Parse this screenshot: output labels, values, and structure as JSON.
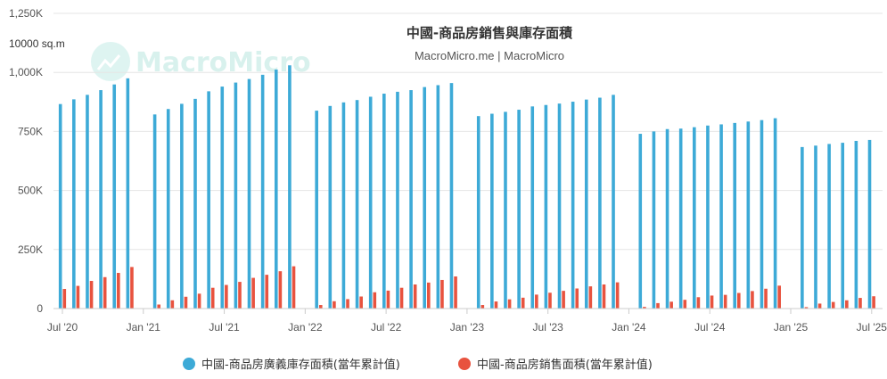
{
  "watermark": {
    "text": "MacroMicro"
  },
  "chart_data": {
    "type": "bar",
    "title": "中國-商品房銷售與庫存面積",
    "subtitle": "MacroMicro.me | MacroMicro",
    "ylabel": "10000 sq.m",
    "ylim": [
      0,
      1250
    ],
    "ytick_values": [
      0,
      250,
      500,
      750,
      1000,
      1250
    ],
    "ytick_labels": [
      "0",
      "250K",
      "500K",
      "750K",
      "1,000K",
      "1,250K"
    ],
    "xtick_labels": [
      "Jul '20",
      "Jan '21",
      "Jul '21",
      "Jan '22",
      "Jul '22",
      "Jan '23",
      "Jul '23",
      "Jan '24",
      "Jul '24",
      "Jan '25",
      "Jul '25"
    ],
    "grid": true,
    "legend_position": "bottom",
    "categories": [
      "2020-07",
      "2020-08",
      "2020-09",
      "2020-10",
      "2020-11",
      "2020-12",
      "2021-02",
      "2021-03",
      "2021-04",
      "2021-05",
      "2021-06",
      "2021-07",
      "2021-08",
      "2021-09",
      "2021-10",
      "2021-11",
      "2021-12",
      "2022-02",
      "2022-03",
      "2022-04",
      "2022-05",
      "2022-06",
      "2022-07",
      "2022-08",
      "2022-09",
      "2022-10",
      "2022-11",
      "2022-12",
      "2023-02",
      "2023-03",
      "2023-04",
      "2023-05",
      "2023-06",
      "2023-07",
      "2023-08",
      "2023-09",
      "2023-10",
      "2023-11",
      "2023-12",
      "2024-02",
      "2024-03",
      "2024-04",
      "2024-05",
      "2024-06",
      "2024-07",
      "2024-08",
      "2024-09",
      "2024-10",
      "2024-11",
      "2024-12",
      "2025-02",
      "2025-03",
      "2025-04",
      "2025-05",
      "2025-06",
      "2025-07"
    ],
    "series": [
      {
        "name": "中國-商品房廣義庫存面積(當年累計值)",
        "color": "#3daad7",
        "values": [
          866,
          886,
          905,
          925,
          949,
          975,
          822,
          845,
          867,
          888,
          920,
          940,
          957,
          972,
          990,
          1012,
          1030,
          838,
          858,
          873,
          883,
          897,
          910,
          918,
          925,
          938,
          946,
          955,
          815,
          825,
          833,
          842,
          856,
          862,
          868,
          876,
          885,
          893,
          905,
          740,
          750,
          760,
          762,
          768,
          775,
          780,
          786,
          792,
          798,
          806,
          684,
          690,
          697,
          702,
          710,
          714
        ]
      },
      {
        "name": "中國-商品房銷售面積(當年累計值)",
        "color": "#e8533f",
        "values": [
          83,
          96,
          117,
          133,
          151,
          176,
          17,
          35,
          50,
          63,
          88,
          100,
          113,
          130,
          143,
          158,
          179,
          15,
          31,
          40,
          51,
          69,
          76,
          88,
          102,
          110,
          121,
          136,
          15,
          30,
          39,
          46,
          59,
          67,
          75,
          85,
          94,
          102,
          111,
          7,
          23,
          29,
          37,
          48,
          55,
          58,
          66,
          74,
          84,
          97,
          6,
          21,
          28,
          35,
          45,
          52
        ]
      }
    ]
  }
}
